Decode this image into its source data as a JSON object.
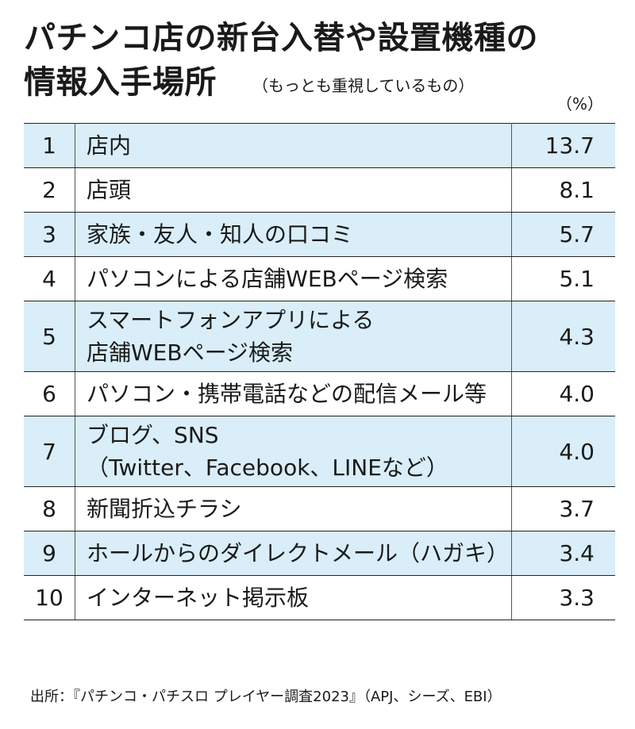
{
  "header": {
    "title_line1": "パチンコ店の新台入替や設置機種の",
    "title_line2": "情報入手場所",
    "subtitle": "（もっとも重視しているもの）",
    "unit": "（%）"
  },
  "chart_data": {
    "type": "table",
    "title": "パチンコ店の新台入替や設置機種の情報入手場所",
    "subtitle": "（もっとも重視しているもの）",
    "unit": "%",
    "rows": [
      {
        "rank": "1",
        "lines": [
          "店内"
        ],
        "value": "13.7"
      },
      {
        "rank": "2",
        "lines": [
          "店頭"
        ],
        "value": "8.1"
      },
      {
        "rank": "3",
        "lines": [
          "家族・友人・知人の口コミ"
        ],
        "value": "5.7"
      },
      {
        "rank": "4",
        "lines": [
          "パソコンによる店舗WEBページ検索"
        ],
        "value": "5.1"
      },
      {
        "rank": "5",
        "lines": [
          "スマートフォンアプリによる",
          "店舗WEBページ検索"
        ],
        "value": "4.3"
      },
      {
        "rank": "6",
        "lines": [
          "パソコン・携帯電話などの配信メール等"
        ],
        "value": "4.0"
      },
      {
        "rank": "7",
        "lines": [
          "ブログ、SNS",
          "（Twitter、Facebook、LINEなど）"
        ],
        "value": "4.0"
      },
      {
        "rank": "8",
        "lines": [
          "新聞折込チラシ"
        ],
        "value": "3.7"
      },
      {
        "rank": "9",
        "lines": [
          "ホールからのダイレクトメール（ハガキ）"
        ],
        "value": "3.4"
      },
      {
        "rank": "10",
        "lines": [
          "インターネット掲示板"
        ],
        "value": "3.3"
      }
    ],
    "row_colors": {
      "odd": "#d9eef8",
      "even": "#ffffff"
    }
  },
  "footer": {
    "source": "出所：『パチンコ・パチスロ プレイヤー調査2023』（APJ、シーズ、EBI）"
  }
}
